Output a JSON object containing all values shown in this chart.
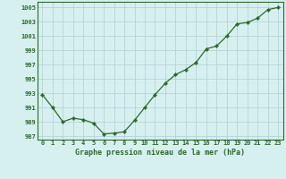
{
  "x": [
    0,
    1,
    2,
    3,
    4,
    5,
    6,
    7,
    8,
    9,
    10,
    11,
    12,
    13,
    14,
    15,
    16,
    17,
    18,
    19,
    20,
    21,
    22,
    23
  ],
  "y": [
    992.8,
    991.0,
    989.0,
    989.5,
    989.3,
    988.8,
    987.3,
    987.4,
    987.6,
    989.2,
    991.0,
    992.8,
    994.4,
    995.6,
    996.3,
    997.3,
    999.2,
    999.6,
    1001.0,
    1002.7,
    1002.9,
    1003.5,
    1004.7,
    1005.0
  ],
  "line_color": "#2d6a2d",
  "marker_color": "#2d6a2d",
  "bg_color": "#d6f0f0",
  "grid_color": "#b0cece",
  "text_color": "#2d6a2d",
  "title": "Graphe pression niveau de la mer (hPa)",
  "ylim_min": 986.5,
  "ylim_max": 1005.8,
  "yticks": [
    987,
    989,
    991,
    993,
    995,
    997,
    999,
    1001,
    1003,
    1005
  ],
  "xticks": [
    0,
    1,
    2,
    3,
    4,
    5,
    6,
    7,
    8,
    9,
    10,
    11,
    12,
    13,
    14,
    15,
    16,
    17,
    18,
    19,
    20,
    21,
    22,
    23
  ],
  "xlabel_fontsize": 6.0,
  "tick_fontsize": 5.0
}
